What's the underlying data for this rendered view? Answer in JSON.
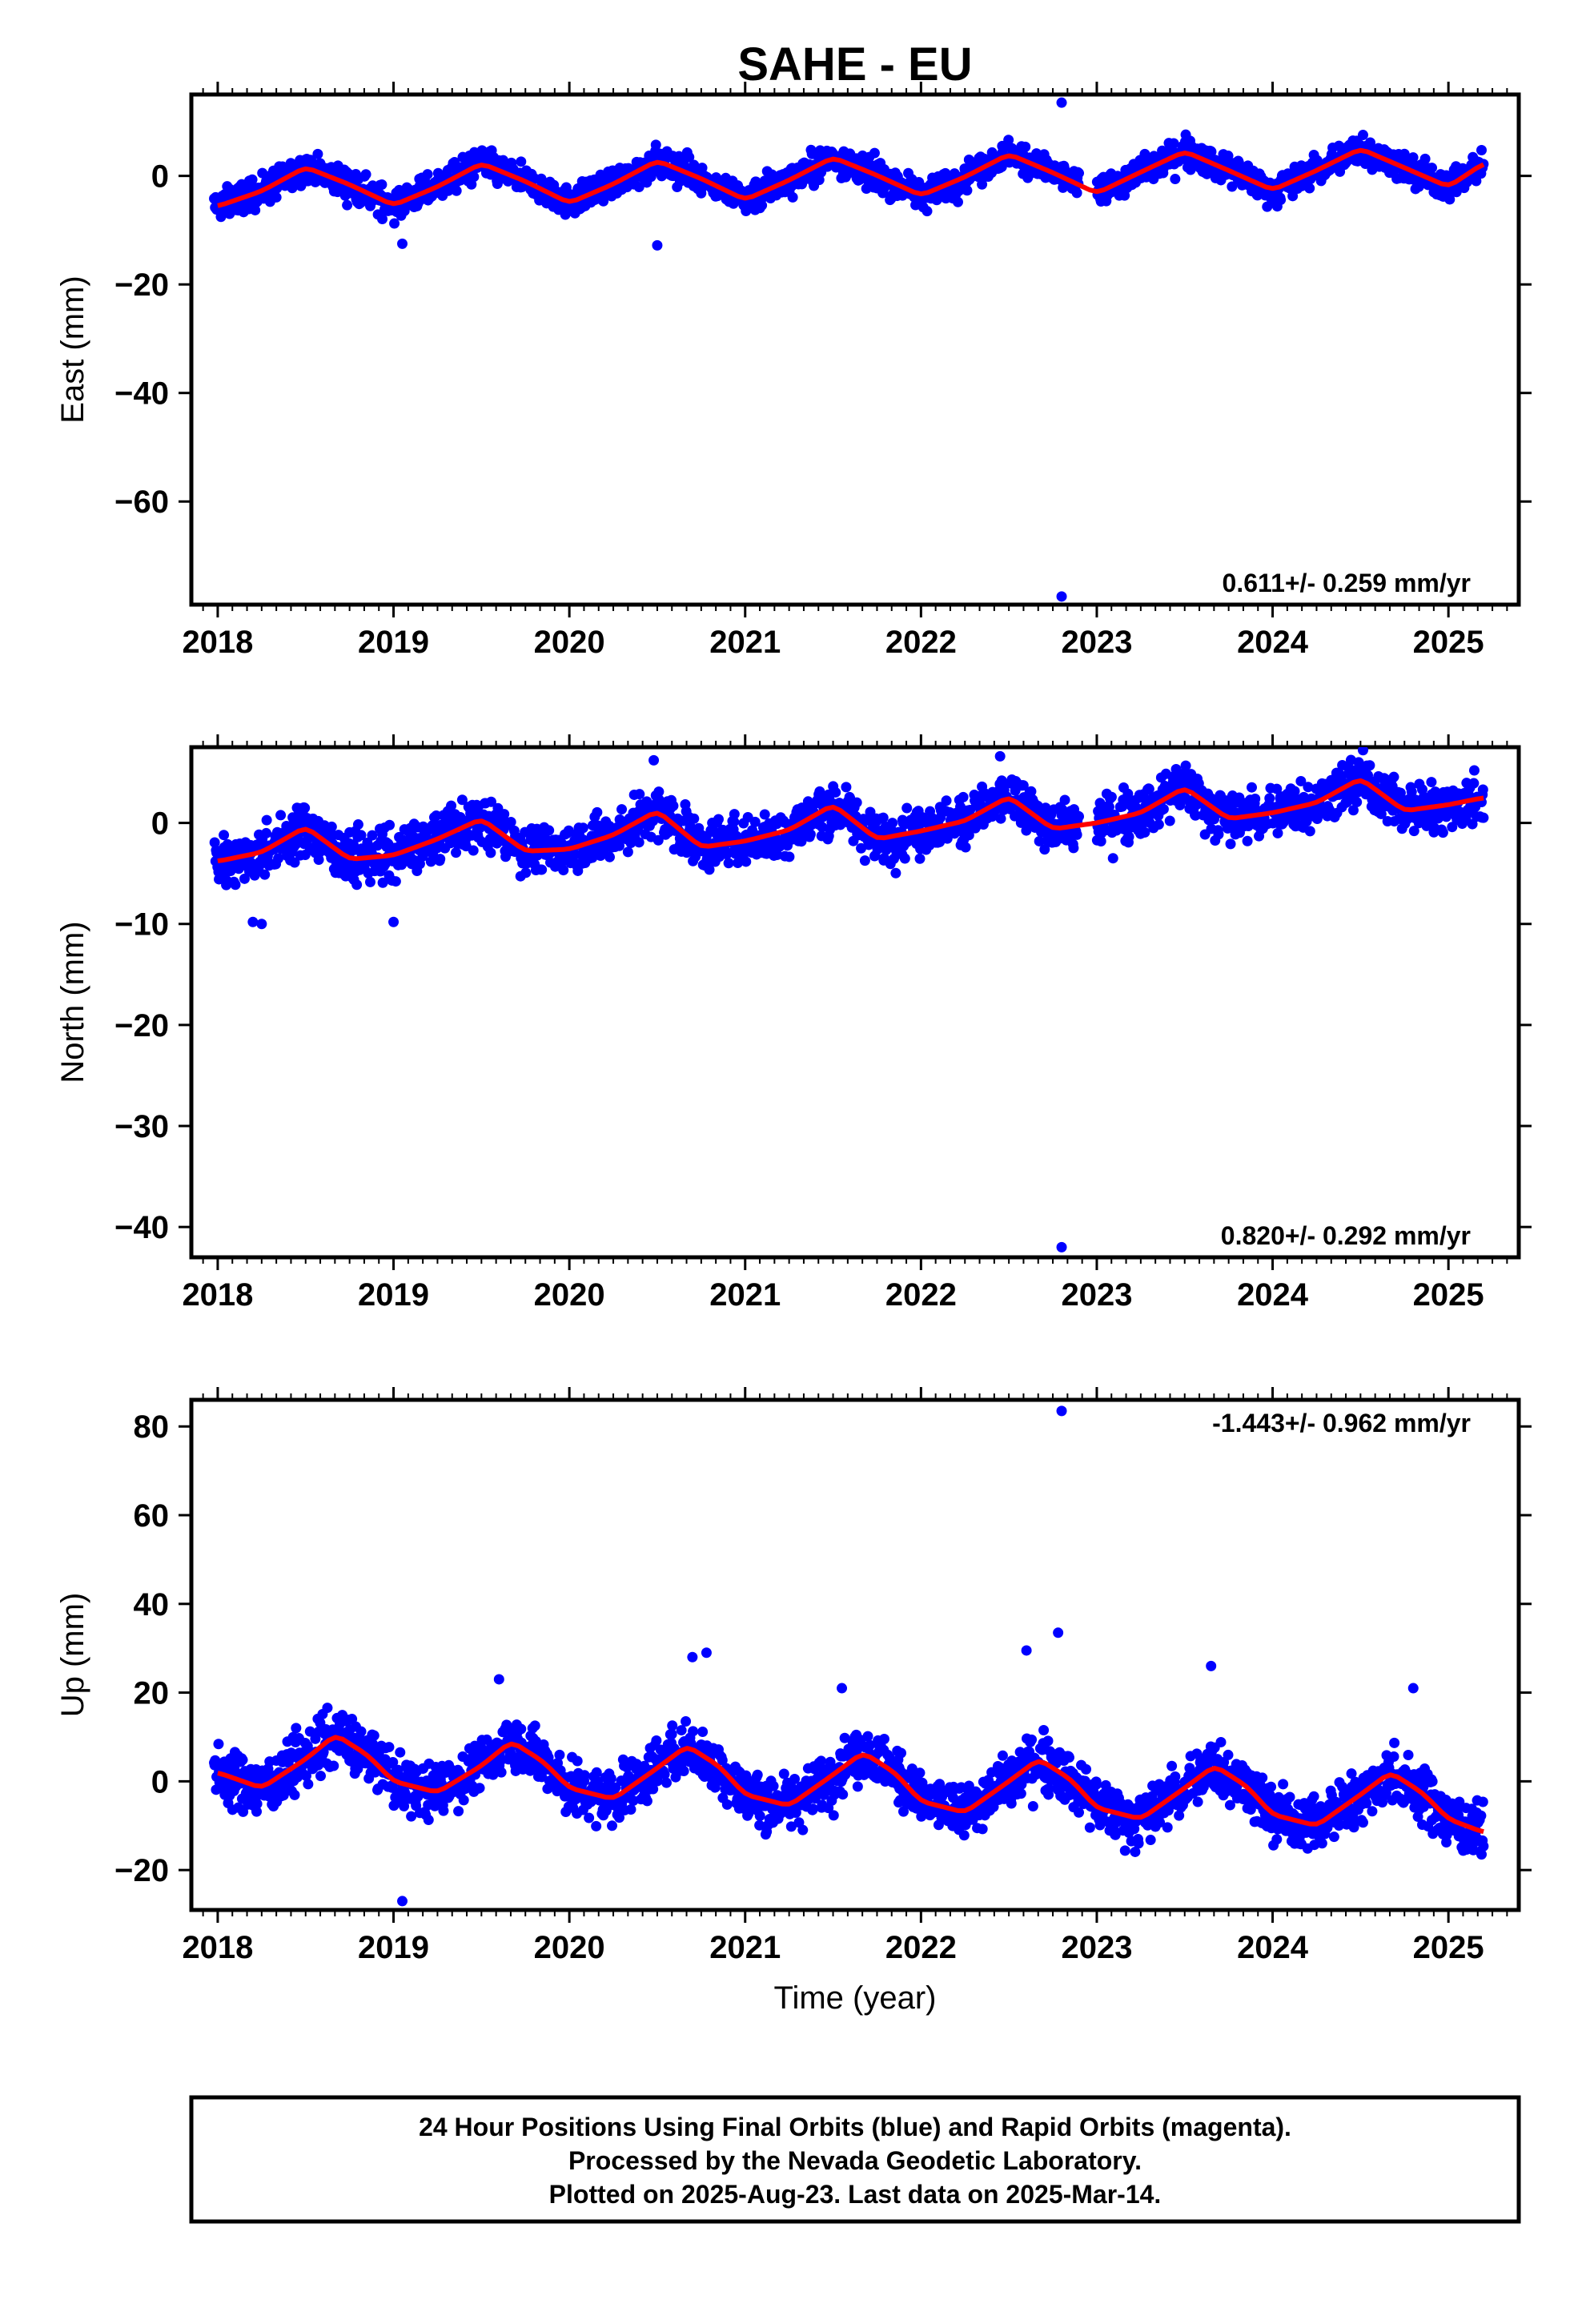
{
  "title": "SAHE - EU",
  "x_axis_label": "Time (year)",
  "footer": {
    "line1": "24 Hour Positions Using Final Orbits (blue) and Rapid Orbits (magenta).",
    "line2": "Processed by the Nevada Geodetic Laboratory.",
    "line3": "Plotted on 2025-Aug-23. Last data on 2025-Mar-14."
  },
  "colors": {
    "data": "#0000ff",
    "model": "#ff0000",
    "frame": "#000000"
  },
  "chart_data": [
    {
      "type": "scatter",
      "ylabel": "East (mm)",
      "xlim": [
        2017.85,
        2025.4
      ],
      "ylim": [
        -79,
        15
      ],
      "xticks": [
        2018,
        2019,
        2020,
        2021,
        2022,
        2023,
        2024,
        2025
      ],
      "yticks": [
        0,
        -20,
        -40,
        -60
      ],
      "rate_text": "0.611+/- 0.259 mm/yr",
      "rate_position": "bottom-right",
      "series": [
        {
          "kind": "model-fit",
          "x": [
            2018.0,
            2018.25,
            2018.5,
            2018.75,
            2019.0,
            2019.25,
            2019.5,
            2019.75,
            2020.0,
            2020.25,
            2020.5,
            2020.75,
            2021.0,
            2021.25,
            2021.5,
            2021.75,
            2022.0,
            2022.25,
            2022.5,
            2022.75,
            2023.0,
            2023.25,
            2023.5,
            2023.75,
            2024.0,
            2024.25,
            2024.5,
            2024.75,
            2025.0,
            2025.2
          ],
          "y": [
            -5.6,
            -2.8,
            1.6,
            -1.6,
            -5.4,
            -2.0,
            2.3,
            -1.0,
            -5.0,
            -1.5,
            2.8,
            -0.5,
            -4.4,
            -0.8,
            3.4,
            0.1,
            -3.6,
            -0.2,
            4.0,
            0.6,
            -3.2,
            0.7,
            4.5,
            1.0,
            -2.6,
            1.0,
            5.0,
            1.5,
            -2.0,
            2.3
          ],
          "noise": 2.2
        },
        {
          "kind": "outliers",
          "x": [
            2019.05,
            2020.5,
            2022.8,
            2022.8
          ],
          "y": [
            -12.5,
            -12.8,
            13.5,
            -77.5
          ]
        }
      ]
    },
    {
      "type": "scatter",
      "ylabel": "North (mm)",
      "xlim": [
        2017.85,
        2025.4
      ],
      "ylim": [
        -43,
        7.5
      ],
      "xticks": [
        2018,
        2019,
        2020,
        2021,
        2022,
        2023,
        2024,
        2025
      ],
      "yticks": [
        0,
        -10,
        -20,
        -30,
        -40
      ],
      "rate_text": "0.820+/- 0.292 mm/yr",
      "rate_position": "bottom-right",
      "series": [
        {
          "kind": "model-fit",
          "x": [
            2018.0,
            2018.25,
            2018.5,
            2018.75,
            2019.0,
            2019.25,
            2019.5,
            2019.75,
            2020.0,
            2020.25,
            2020.5,
            2020.75,
            2021.0,
            2021.25,
            2021.5,
            2021.75,
            2022.0,
            2022.25,
            2022.5,
            2022.75,
            2023.0,
            2023.25,
            2023.5,
            2023.75,
            2024.0,
            2024.25,
            2024.5,
            2024.75,
            2025.0,
            2025.2
          ],
          "y": [
            -3.8,
            -2.9,
            -0.4,
            -3.6,
            -3.2,
            -1.6,
            0.4,
            -2.8,
            -2.6,
            -1.2,
            1.2,
            -2.4,
            -1.8,
            -0.7,
            1.8,
            -1.6,
            -0.8,
            0.2,
            2.6,
            -0.6,
            0.0,
            1.0,
            3.5,
            0.4,
            1.0,
            2.0,
            4.4,
            1.2,
            1.8,
            2.5
          ],
          "noise": 2.0
        },
        {
          "kind": "outliers",
          "x": [
            2018.2,
            2018.25,
            2019.0,
            2020.48,
            2022.45,
            2022.8
          ],
          "y": [
            -9.8,
            -10.0,
            -9.8,
            6.2,
            6.6,
            -42.0
          ]
        }
      ]
    },
    {
      "type": "scatter",
      "ylabel": "Up (mm)",
      "xlim": [
        2017.85,
        2025.4
      ],
      "ylim": [
        -29,
        86
      ],
      "xticks": [
        2018,
        2019,
        2020,
        2021,
        2022,
        2023,
        2024,
        2025
      ],
      "yticks": [
        80,
        60,
        40,
        20,
        0,
        -20
      ],
      "rate_text": "-1.443+/- 0.962 mm/yr",
      "rate_position": "top-right",
      "series": [
        {
          "kind": "model-fit",
          "x": [
            2018.0,
            2018.25,
            2018.5,
            2018.67,
            2018.85,
            2019.0,
            2019.25,
            2019.5,
            2019.67,
            2019.85,
            2020.0,
            2020.25,
            2020.5,
            2020.67,
            2020.85,
            2021.0,
            2021.25,
            2021.5,
            2021.67,
            2021.85,
            2022.0,
            2022.25,
            2022.5,
            2022.67,
            2022.85,
            2023.0,
            2023.25,
            2023.5,
            2023.67,
            2023.85,
            2024.0,
            2024.25,
            2024.5,
            2024.67,
            2024.85,
            2025.0,
            2025.2
          ],
          "y": [
            2.0,
            -1.5,
            5.0,
            10.5,
            6.0,
            0.0,
            -2.5,
            3.5,
            9.0,
            4.5,
            -1.5,
            -4.0,
            3.0,
            8.0,
            3.5,
            -3.0,
            -5.5,
            1.5,
            6.5,
            2.0,
            -4.5,
            -7.0,
            0.0,
            5.0,
            0.5,
            -6.0,
            -8.5,
            -1.5,
            3.5,
            -1.0,
            -7.5,
            -10.0,
            -3.0,
            2.0,
            -2.5,
            -8.5,
            -11.5
          ],
          "noise": 5.0
        },
        {
          "kind": "outliers",
          "x": [
            2019.05,
            2019.6,
            2020.7,
            2020.78,
            2021.55,
            2022.6,
            2022.78,
            2022.8,
            2023.65,
            2024.8
          ],
          "y": [
            -27.0,
            23.0,
            28.0,
            29.0,
            21.0,
            29.5,
            33.5,
            83.5,
            26.0,
            21.0
          ]
        }
      ]
    }
  ]
}
